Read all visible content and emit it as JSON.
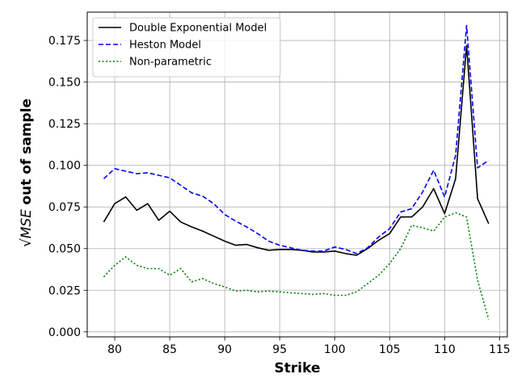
{
  "chart_data": {
    "type": "line",
    "xlabel": "Strike",
    "ylabel_math": "√MSE",
    "ylabel_rest": " out of sample",
    "xlim": [
      77.5,
      115.7
    ],
    "ylim": [
      -0.003,
      0.192
    ],
    "xticks": [
      80,
      85,
      90,
      95,
      100,
      105,
      110,
      115
    ],
    "xtick_labels": [
      "80",
      "85",
      "90",
      "95",
      "100",
      "105",
      "110",
      "115"
    ],
    "yticks": [
      0,
      0.025,
      0.05,
      0.075,
      0.1,
      0.125,
      0.15,
      0.175
    ],
    "ytick_labels": [
      "0.000",
      "0.025",
      "0.050",
      "0.075",
      "0.100",
      "0.125",
      "0.150",
      "0.175"
    ],
    "grid": true,
    "legend_position": "top-left",
    "x": [
      79,
      80,
      81,
      82,
      83,
      84,
      85,
      86,
      87,
      88,
      89,
      90,
      91,
      92,
      93,
      94,
      95,
      96,
      97,
      98,
      99,
      100,
      101,
      102,
      103,
      104,
      105,
      106,
      107,
      108,
      109,
      110,
      111,
      112,
      113,
      114
    ],
    "series": [
      {
        "name": "Double Exponential Model",
        "color": "#000000",
        "style": "solid",
        "values": [
          0.066,
          0.077,
          0.081,
          0.073,
          0.077,
          0.067,
          0.0725,
          0.066,
          0.063,
          0.0605,
          0.0575,
          0.0545,
          0.052,
          0.0525,
          0.0505,
          0.049,
          0.0495,
          0.0495,
          0.049,
          0.048,
          0.048,
          0.0485,
          0.047,
          0.046,
          0.05,
          0.055,
          0.059,
          0.069,
          0.069,
          0.075,
          0.086,
          0.071,
          0.092,
          0.172,
          0.08,
          0.065
        ]
      },
      {
        "name": "Heston Model",
        "color": "#0000ff",
        "style": "dashed",
        "values": [
          0.092,
          0.098,
          0.0965,
          0.095,
          0.0955,
          0.094,
          0.0925,
          0.088,
          0.0835,
          0.0815,
          0.077,
          0.0705,
          0.0665,
          0.063,
          0.059,
          0.0545,
          0.052,
          0.0505,
          0.049,
          0.0485,
          0.0485,
          0.051,
          0.0495,
          0.047,
          0.0505,
          0.057,
          0.062,
          0.072,
          0.074,
          0.084,
          0.097,
          0.081,
          0.106,
          0.184,
          0.0985,
          0.103
        ]
      },
      {
        "name": "Non-parametric",
        "color": "#008000",
        "style": "dotted",
        "values": [
          0.033,
          0.04,
          0.045,
          0.04,
          0.038,
          0.038,
          0.034,
          0.038,
          0.03,
          0.032,
          0.029,
          0.027,
          0.0245,
          0.025,
          0.024,
          0.0245,
          0.024,
          0.0235,
          0.023,
          0.0225,
          0.023,
          0.022,
          0.022,
          0.024,
          0.029,
          0.034,
          0.041,
          0.05,
          0.064,
          0.0625,
          0.0605,
          0.069,
          0.0715,
          0.069,
          0.031,
          0.0075
        ]
      }
    ]
  }
}
